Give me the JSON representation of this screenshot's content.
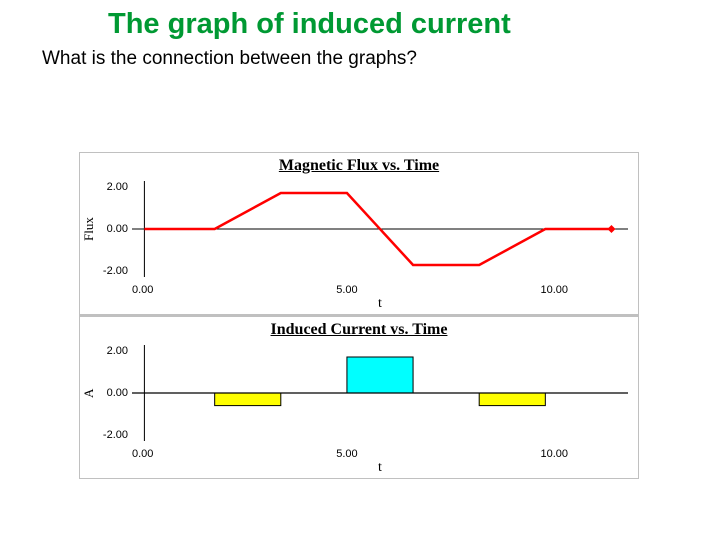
{
  "title": "The graph of induced current",
  "subtitle": "What is the connection between the graphs?",
  "graph1": {
    "title": "Magnetic Flux vs. Time",
    "ylabel": "Flux",
    "xlabel": "t",
    "yticks": [
      "2.00",
      "0.00",
      "-2.00"
    ],
    "xticks": [
      "0.00",
      "5.00",
      "10.00"
    ],
    "ylim": [
      -3,
      3
    ],
    "xlim": [
      0,
      12
    ],
    "line_color": "#ff0000",
    "line_width": 2.5,
    "axis_color": "#000000",
    "points": [
      [
        0.3,
        0
      ],
      [
        2.0,
        0
      ],
      [
        3.6,
        2
      ],
      [
        5.2,
        2
      ],
      [
        6.8,
        -2
      ],
      [
        8.4,
        -2
      ],
      [
        10.0,
        0
      ],
      [
        11.6,
        0
      ]
    ]
  },
  "graph2": {
    "title": "Induced Current vs. Time",
    "ylabel": "A",
    "xlabel": "t",
    "yticks": [
      "2.00",
      "0.00",
      "-2.00"
    ],
    "xticks": [
      "0.00",
      "5.00",
      "10.00"
    ],
    "ylim": [
      -3,
      3
    ],
    "xlim": [
      0,
      12
    ],
    "axis_color": "#000000",
    "line_color": "#000000",
    "line_width": 1.2,
    "bars": [
      {
        "x0": 2.0,
        "x1": 3.6,
        "y": -0.7,
        "fill": "#ffff00",
        "stroke": "#000000"
      },
      {
        "x0": 5.2,
        "x1": 6.8,
        "y": 2.0,
        "fill": "#00ffff",
        "stroke": "#000000"
      },
      {
        "x0": 8.4,
        "x1": 10.0,
        "y": -0.7,
        "fill": "#ffff00",
        "stroke": "#000000"
      }
    ],
    "baseline_y": 0
  }
}
